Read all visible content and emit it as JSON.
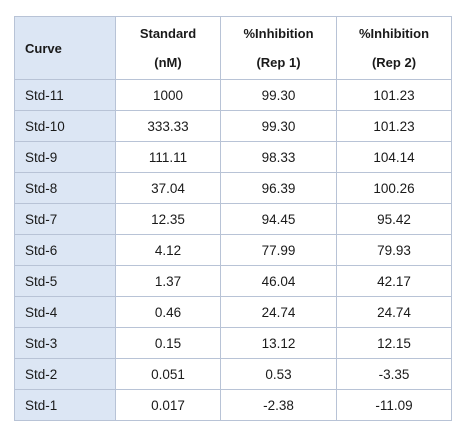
{
  "table": {
    "headers": {
      "curve": "Curve",
      "standard": {
        "line1": "Standard",
        "line2": "(nM)"
      },
      "rep1": {
        "line1": "%Inhibition",
        "line2": "(Rep 1)"
      },
      "rep2": {
        "line1": "%Inhibition",
        "line2": "(Rep 2)"
      }
    },
    "rows": [
      {
        "curve": "Std-11",
        "standard": "1000",
        "rep1": "99.30",
        "rep2": "101.23"
      },
      {
        "curve": "Std-10",
        "standard": "333.33",
        "rep1": "99.30",
        "rep2": "101.23"
      },
      {
        "curve": "Std-9",
        "standard": "111.11",
        "rep1": "98.33",
        "rep2": "104.14"
      },
      {
        "curve": "Std-8",
        "standard": "37.04",
        "rep1": "96.39",
        "rep2": "100.26"
      },
      {
        "curve": "Std-7",
        "standard": "12.35",
        "rep1": "94.45",
        "rep2": "95.42"
      },
      {
        "curve": "Std-6",
        "standard": "4.12",
        "rep1": "77.99",
        "rep2": "79.93"
      },
      {
        "curve": "Std-5",
        "standard": "1.37",
        "rep1": "46.04",
        "rep2": "42.17"
      },
      {
        "curve": "Std-4",
        "standard": "0.46",
        "rep1": "24.74",
        "rep2": "24.74"
      },
      {
        "curve": "Std-3",
        "standard": "0.15",
        "rep1": "13.12",
        "rep2": "12.15"
      },
      {
        "curve": "Std-2",
        "standard": "0.051",
        "rep1": "0.53",
        "rep2": "-3.35"
      },
      {
        "curve": "Std-1",
        "standard": "0.017",
        "rep1": "-2.38",
        "rep2": "-11.09"
      }
    ]
  },
  "colors": {
    "label_fill": "#dce6f4",
    "border": "#b8c3d6"
  }
}
